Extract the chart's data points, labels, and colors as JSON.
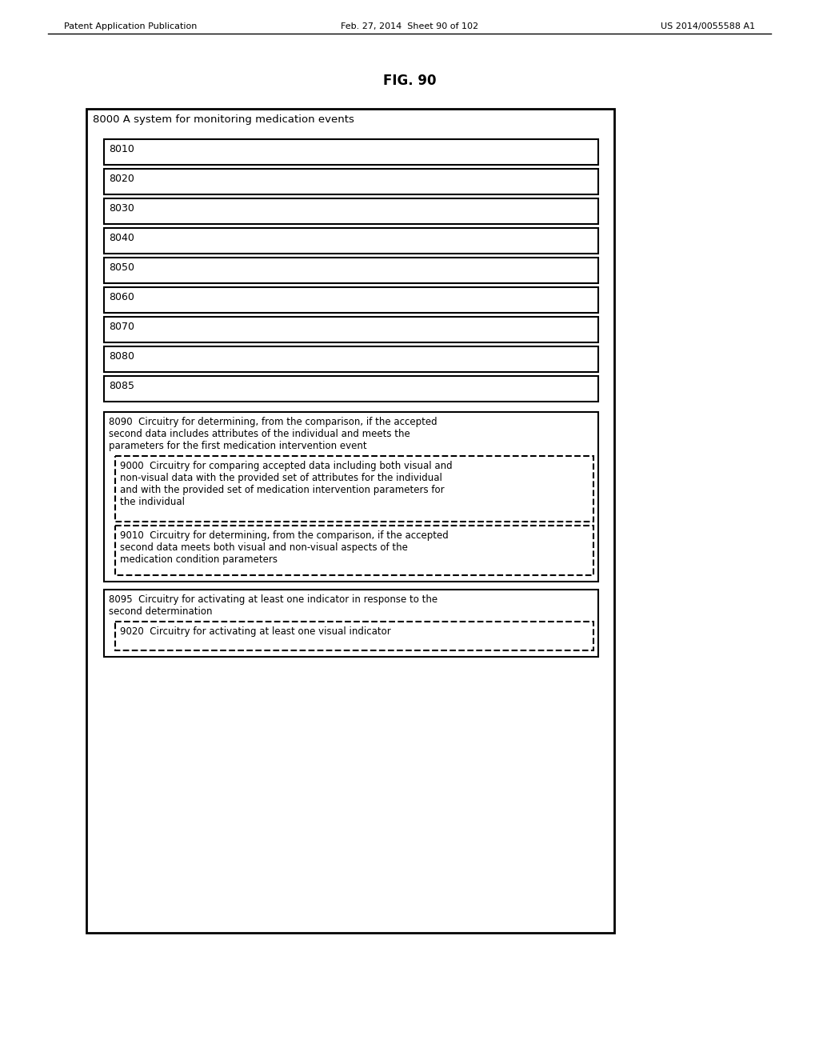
{
  "fig_label": "FIG. 90",
  "header_left": "Patent Application Publication",
  "header_center": "Feb. 27, 2014  Sheet 90 of 102",
  "header_right": "US 2014/0055588 A1",
  "outer_box_label": "8000 A system for monitoring medication events",
  "simple_boxes": [
    "8010",
    "8020",
    "8030",
    "8040",
    "8050",
    "8060",
    "8070",
    "8080",
    "8085"
  ],
  "box_8090_text": "8090  Circuitry for determining, from the comparison, if the accepted\nsecond data includes attributes of the individual and meets the\nparameters for the first medication intervention event",
  "box_9000_text": "9000  Circuitry for comparing accepted data including both visual and\nnon-visual data with the provided set of attributes for the individual\nand with the provided set of medication intervention parameters for\nthe individual",
  "box_9010_text": "9010  Circuitry for determining, from the comparison, if the accepted\nsecond data meets both visual and non-visual aspects of the\nmedication condition parameters",
  "box_8095_text": "8095  Circuitry for activating at least one indicator in response to the\nsecond determination",
  "box_9020_text": "9020  Circuitry for activating at least one visual indicator",
  "bg_color": "#ffffff",
  "font_size": 8.5,
  "header_font_size": 8.0,
  "title_font_size": 12
}
